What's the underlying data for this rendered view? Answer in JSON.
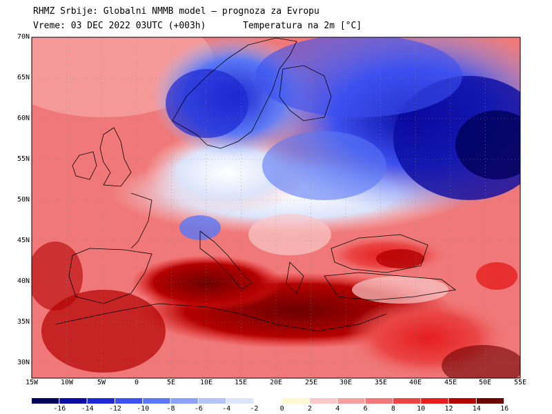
{
  "header": {
    "line1": "RHMZ Srbije: Globalni NMMB model — prognoza za Evropu",
    "line2": "Vreme: 03 DEC 2022 03UTC (+003h)",
    "variable": "Temperatura na 2m [°C]"
  },
  "map": {
    "lon_range": [
      -15,
      55
    ],
    "lat_range": [
      28,
      70
    ],
    "lat_labels": [
      "70N",
      "65N",
      "60N",
      "55N",
      "50N",
      "45N",
      "40N",
      "35N",
      "30N"
    ],
    "lon_labels": [
      "15W",
      "10W",
      "5W",
      "0",
      "5E",
      "10E",
      "15E",
      "20E",
      "25E",
      "30E",
      "35E",
      "40E",
      "45E",
      "50E",
      "55E"
    ],
    "grid": true,
    "colors": {
      "sea_warm": "#f0645a",
      "frame": "#000000"
    }
  },
  "colorbar": {
    "labels": [
      "-16",
      "-14",
      "-12",
      "-10",
      "-8",
      "-6",
      "-4",
      "-2",
      "0",
      "2",
      "4",
      "6",
      "8",
      "10",
      "12",
      "14",
      "16"
    ],
    "colors": [
      "#00005a",
      "#0a0aa0",
      "#1e28d2",
      "#3c50f0",
      "#5a78f5",
      "#8ca0f5",
      "#b4c3f8",
      "#dce4fb",
      "#ffffff",
      "#fff8d2",
      "#fac8c8",
      "#f5a0a0",
      "#f07878",
      "#eb4646",
      "#e61e1e",
      "#b40000",
      "#6e0000"
    ]
  }
}
